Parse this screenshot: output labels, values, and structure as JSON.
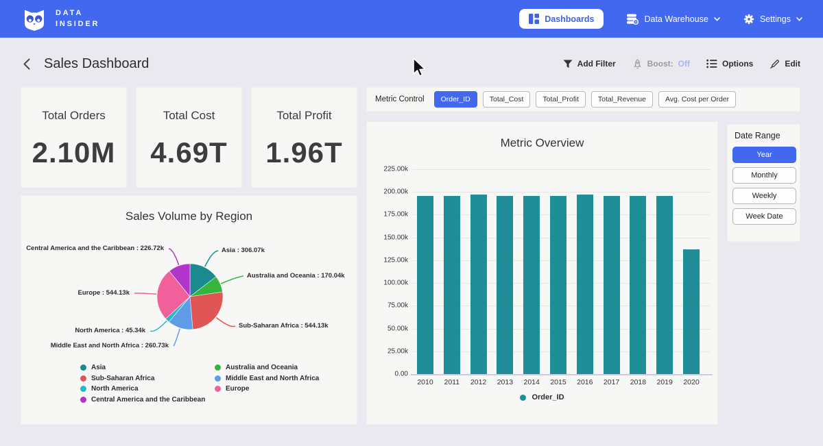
{
  "colors": {
    "accent": "#4168ef",
    "nav_background": "#4168ef",
    "boost_off": "#a9b6f0",
    "card_background": "#f7f7f5"
  },
  "nav": {
    "brand_line1": "DATA",
    "brand_line2": "INSIDER",
    "dashboards_label": "Dashboards",
    "data_warehouse_label": "Data Warehouse",
    "settings_label": "Settings"
  },
  "header": {
    "title": "Sales Dashboard",
    "add_filter_label": "Add Filter",
    "boost_label": "Boost:",
    "boost_value": "Off",
    "options_label": "Options",
    "edit_label": "Edit"
  },
  "kpis": [
    {
      "label": "Total Orders",
      "value": "2.10M"
    },
    {
      "label": "Total Cost",
      "value": "4.69T"
    },
    {
      "label": "Total Profit",
      "value": "1.96T"
    }
  ],
  "metric_control": {
    "label": "Metric Control",
    "options": [
      "Order_ID",
      "Total_Cost",
      "Total_Profit",
      "Total_Revenue",
      "Avg. Cost per Order"
    ],
    "selected": "Order_ID"
  },
  "date_range": {
    "label": "Date Range",
    "options": [
      "Year",
      "Monthly",
      "Weekly",
      "Week Date"
    ],
    "selected": "Year"
  },
  "chart_data": [
    {
      "type": "pie",
      "title": "Sales Volume by Region",
      "legend_position": "bottom",
      "slices": [
        {
          "name": "Asia",
          "value": 306.07,
          "display": "306.07k",
          "color": "#1b8a8f"
        },
        {
          "name": "Australia and Oceania",
          "value": 170.04,
          "display": "170.04k",
          "color": "#36b53c"
        },
        {
          "name": "Sub-Saharan Africa",
          "value": 544.13,
          "display": "544.13k",
          "color": "#e05656"
        },
        {
          "name": "Middle East and North Africa",
          "value": 260.73,
          "display": "260.73k",
          "color": "#5f9ce8"
        },
        {
          "name": "North America",
          "value": 45.34,
          "display": "45.34k",
          "color": "#28b8c5"
        },
        {
          "name": "Europe",
          "value": 544.13,
          "display": "544.13k",
          "color": "#f2609b"
        },
        {
          "name": "Central America and the Caribbean",
          "value": 226.72,
          "display": "226.72k",
          "color": "#b135cb"
        }
      ],
      "unit": "k"
    },
    {
      "type": "bar",
      "title": "Metric Overview",
      "categories": [
        "2010",
        "2011",
        "2012",
        "2013",
        "2014",
        "2015",
        "2016",
        "2017",
        "2018",
        "2019",
        "2020"
      ],
      "series": [
        {
          "name": "Order_ID",
          "color": "#1f8e96",
          "values": [
            195900,
            195700,
            196900,
            195800,
            195600,
            195700,
            197000,
            195500,
            195600,
            195800,
            137100
          ]
        }
      ],
      "ylim": [
        0,
        225000
      ],
      "ytick_values": [
        0,
        25000,
        50000,
        75000,
        100000,
        125000,
        150000,
        175000,
        200000,
        225000
      ],
      "ytick_labels": [
        "0.00",
        "25.00k",
        "50.00k",
        "75.00k",
        "100.00k",
        "125.00k",
        "150.00k",
        "175.00k",
        "200.00k",
        "225.00k"
      ],
      "grid": true,
      "legend_position": "bottom"
    }
  ]
}
